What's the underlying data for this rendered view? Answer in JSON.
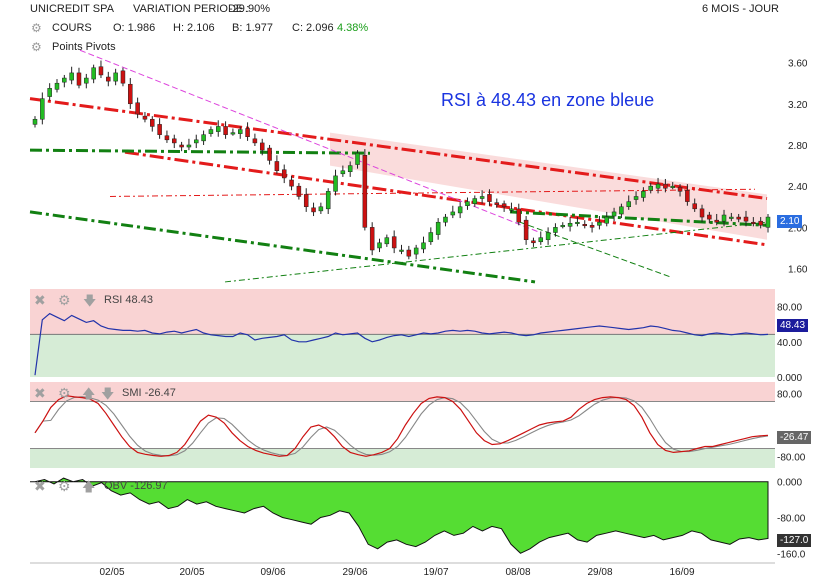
{
  "header": {
    "symbol": "UNICREDIT SPA",
    "variation_label": "VARIATION PERIODE :",
    "variation_value": "-29.90%",
    "period": "6 MOIS - JOUR",
    "cours_label": "COURS",
    "open": "O: 1.986",
    "high": "H: 2.106",
    "low": "B: 1.977",
    "close_label": "C: 2.096",
    "change": "4.38%",
    "pivots_label": "Points Pivots"
  },
  "annotation": "RSI  à 48.43 en zone bleue",
  "colors": {
    "up": "#22bb22",
    "down": "#cc1111",
    "rsi": "#2233aa",
    "zone_red": "#f9d3d3",
    "zone_green": "#d6ecd6",
    "obv": "#55dd33",
    "channel_red": "#e31b1b",
    "channel_green": "#128012",
    "price_tag": "#2a6de0"
  },
  "chart_data": [
    {
      "type": "candlestick",
      "name": "price",
      "y_ticks": [
        1.6,
        2.0,
        2.4,
        2.8,
        3.2,
        3.6
      ],
      "y_tick_labels": [
        "1.60",
        "2.00",
        "2.40",
        "2.80",
        "3.20",
        "3.60"
      ],
      "ylim": [
        1.45,
        3.8
      ],
      "x_tick_labels": [
        "02/05",
        "20/05",
        "09/06",
        "29/06",
        "19/07",
        "08/08",
        "29/08",
        "16/09"
      ],
      "last_price_label": "2.10",
      "close": [
        3.05,
        3.25,
        3.35,
        3.4,
        3.45,
        3.5,
        3.38,
        3.45,
        3.55,
        3.48,
        3.42,
        3.5,
        3.4,
        3.2,
        3.1,
        3.05,
        2.98,
        2.9,
        2.85,
        2.82,
        2.78,
        2.8,
        2.85,
        2.9,
        2.95,
        2.98,
        2.9,
        2.92,
        2.95,
        2.88,
        2.82,
        2.75,
        2.65,
        2.55,
        2.48,
        2.4,
        2.3,
        2.2,
        2.15,
        2.2,
        2.35,
        2.5,
        2.55,
        2.6,
        2.72,
        2.0,
        1.78,
        1.85,
        1.9,
        1.8,
        1.78,
        1.72,
        1.8,
        1.85,
        1.95,
        2.05,
        2.1,
        2.15,
        2.2,
        2.25,
        2.28,
        2.3,
        2.25,
        2.22,
        2.2,
        2.18,
        2.05,
        1.88,
        1.85,
        1.9,
        1.95,
        2.0,
        2.02,
        2.04,
        2.05,
        2.02,
        2.0,
        2.05,
        2.1,
        2.15,
        2.2,
        2.25,
        2.3,
        2.35,
        2.4,
        2.42,
        2.38,
        2.4,
        2.35,
        2.25,
        2.18,
        2.1,
        2.08,
        2.05,
        2.12,
        2.1,
        2.08,
        2.06,
        2.05,
        2.02,
        2.1
      ]
    },
    {
      "type": "line",
      "name": "RSI",
      "value_label": "48.43",
      "y_tick_labels": [
        "80.00",
        "40.00",
        "0.000"
      ],
      "ylim": [
        0,
        100
      ],
      "values": [
        2,
        65,
        72,
        68,
        64,
        70,
        66,
        62,
        64,
        58,
        55,
        54,
        53,
        53,
        52,
        53,
        50,
        49,
        51,
        52,
        50,
        52,
        54,
        50,
        48,
        47,
        46,
        46,
        50,
        48,
        42,
        44,
        45,
        46,
        48,
        42,
        40,
        40,
        42,
        44,
        46,
        50,
        48,
        49,
        50,
        44,
        40,
        42,
        45,
        47,
        48,
        46,
        48,
        50,
        49,
        50,
        52,
        53,
        52,
        53,
        52,
        50,
        49,
        50,
        51,
        50,
        48,
        47,
        48,
        50,
        51,
        52,
        53,
        54,
        55,
        56,
        57,
        58,
        57,
        56,
        55,
        54,
        55,
        56,
        58,
        57,
        55,
        53,
        52,
        50,
        48,
        47,
        49,
        50,
        49,
        48,
        49,
        50,
        49,
        48,
        48.43
      ]
    },
    {
      "type": "line",
      "name": "SMI",
      "value_label": "-26.47",
      "y_tick_labels": [
        "80.00",
        "-80.00"
      ],
      "ylim": [
        -110,
        110
      ],
      "values": [
        -20,
        10,
        45,
        65,
        75,
        72,
        70,
        66,
        55,
        30,
        0,
        -30,
        -55,
        -70,
        -75,
        -78,
        -80,
        -78,
        -70,
        -50,
        -20,
        10,
        25,
        20,
        5,
        -20,
        -40,
        -55,
        -65,
        -72,
        -76,
        -80,
        -78,
        -60,
        -30,
        -5,
        0,
        -10,
        -30,
        -55,
        -70,
        -76,
        -80,
        -76,
        -70,
        -60,
        -35,
        0,
        30,
        55,
        68,
        72,
        70,
        60,
        40,
        10,
        -20,
        -40,
        -50,
        -48,
        -40,
        -30,
        -20,
        -10,
        0,
        5,
        8,
        10,
        20,
        40,
        55,
        65,
        70,
        72,
        70,
        65,
        50,
        20,
        -20,
        -50,
        -65,
        -70,
        -68,
        -66,
        -60,
        -55,
        -55,
        -50,
        -45,
        -40,
        -35,
        -30,
        -28,
        -26.47
      ]
    },
    {
      "type": "area",
      "name": "OBV",
      "value_label": "-126.97",
      "last_label": "-127.0",
      "y_tick_labels": [
        "0.000",
        "-80.00",
        "-160.0"
      ],
      "ylim": [
        -175,
        15
      ],
      "values": [
        0,
        5,
        -5,
        8,
        0,
        5,
        -10,
        -2,
        -20,
        -30,
        -25,
        -40,
        -50,
        -45,
        -60,
        -55,
        -40,
        -50,
        -45,
        -55,
        -60,
        -65,
        -70,
        -60,
        -55,
        -70,
        -80,
        -85,
        -90,
        -95,
        -80,
        -75,
        -65,
        -70,
        -100,
        -140,
        -150,
        -135,
        -130,
        -140,
        -145,
        -135,
        -120,
        -110,
        -120,
        -115,
        -100,
        -110,
        -100,
        -105,
        -140,
        -160,
        -150,
        -135,
        -125,
        -120,
        -115,
        -130,
        -135,
        -120,
        -115,
        -110,
        -115,
        -120,
        -125,
        -120,
        -130,
        -125,
        -120,
        -110,
        -115,
        -130,
        -135,
        -140,
        -128,
        -125,
        -130,
        -127
      ]
    }
  ]
}
